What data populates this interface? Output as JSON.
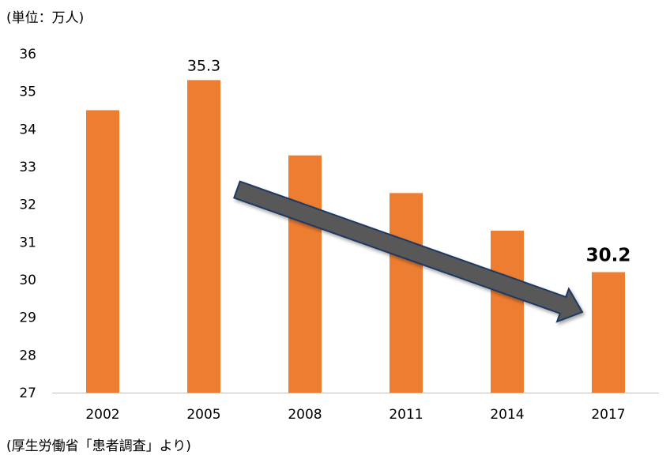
{
  "unit_label": "(単位：万人)",
  "source_label": "(厚生労働省「患者調査」より)",
  "colors": {
    "bar": "#ED7D31",
    "arrow_fill": "#595959",
    "arrow_stroke": "#1F3864",
    "axis": "#BFBFBF"
  },
  "chart_data": {
    "type": "bar",
    "categories": [
      "2002",
      "2005",
      "2008",
      "2011",
      "2014",
      "2017"
    ],
    "values": [
      34.5,
      35.3,
      33.3,
      32.3,
      31.3,
      30.2
    ],
    "ylim": [
      27,
      36
    ],
    "yticks": [
      "36",
      "35",
      "34",
      "33",
      "32",
      "31",
      "30",
      "29",
      "28",
      "27"
    ],
    "data_labels": [
      {
        "category": "2005",
        "text": "35.3",
        "bold": false
      },
      {
        "category": "2017",
        "text": "30.2",
        "bold": true
      }
    ],
    "annotation": {
      "type": "arrow",
      "from_category": "2008",
      "to_category": "2017",
      "direction": "decreasing"
    },
    "grid": false
  }
}
